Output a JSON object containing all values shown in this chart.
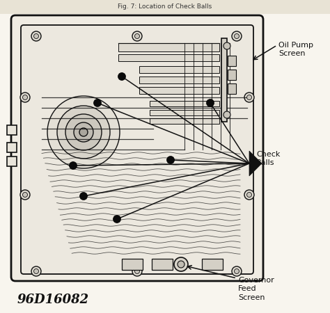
{
  "title": "Fig. 7: Location of Check Balls",
  "title_bg": "#e8e3d5",
  "bg_color": "#f0ece2",
  "figure_code": "96D16082",
  "label_oil_pump": "Oil Pump\nScreen",
  "label_check_balls": "Check\nBalls",
  "label_governor": "Governor\nFeed\nScreen",
  "figsize": [
    4.74,
    4.5
  ],
  "dpi": 100,
  "line_color": "#111111",
  "fill_light": "#f5f2eb",
  "fill_mid": "#e8e4da"
}
